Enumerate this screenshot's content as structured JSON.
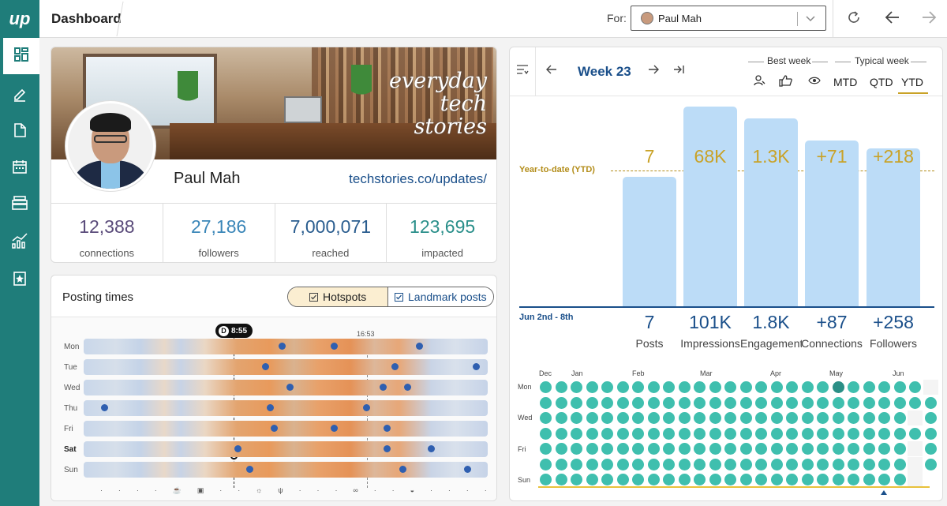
{
  "app": {
    "logo_text": "up",
    "title": "Dashboard"
  },
  "topbar": {
    "for_label": "For:",
    "selected_user": "Paul Mah"
  },
  "sidebar": {
    "items": [
      {
        "icon": "dashboard-icon",
        "active": true
      },
      {
        "icon": "edit-icon",
        "active": false
      },
      {
        "icon": "document-icon",
        "active": false
      },
      {
        "icon": "calendar-icon",
        "active": false
      },
      {
        "icon": "archive-icon",
        "active": false
      },
      {
        "icon": "analytics-icon",
        "active": false
      },
      {
        "icon": "bookmark-star-icon",
        "active": false
      }
    ]
  },
  "profile": {
    "banner_text": [
      "everyday",
      "tech",
      "stories"
    ],
    "name": "Paul Mah",
    "url": "techstories.co/updates/",
    "stats": [
      {
        "value": "12,388",
        "label": "connections",
        "color": "#5a4b7a"
      },
      {
        "value": "27,186",
        "label": "followers",
        "color": "#3a86b8"
      },
      {
        "value": "7,000,071",
        "label": "reached",
        "color": "#2a5d8f"
      },
      {
        "value": "123,695",
        "label": "impacted",
        "color": "#2a8f8a"
      }
    ]
  },
  "posting_times": {
    "title": "Posting times",
    "hotspots_label": "Hotspots",
    "landmark_label": "Landmark posts",
    "now_badge_letter": "D",
    "now_time": "8:55",
    "marker_time": "16:53",
    "days": [
      "Mon",
      "Tue",
      "Wed",
      "Thu",
      "Fri",
      "Sat",
      "Sun"
    ],
    "current_day": "Sat",
    "dot_fractions": [
      [
        0.49,
        0.62,
        0.83
      ],
      [
        0.45,
        0.77,
        0.97
      ],
      [
        0.51,
        0.74,
        0.8
      ],
      [
        0.05,
        0.46,
        0.7
      ],
      [
        0.47,
        0.62,
        0.75
      ],
      [
        0.38,
        0.75,
        0.86
      ],
      [
        0.41,
        0.79,
        0.95
      ]
    ]
  },
  "week_panel": {
    "week_label": "Week 23",
    "best_week_label": "Best week",
    "typical_week_label": "Typical week",
    "periods": [
      "MTD",
      "QTD",
      "YTD"
    ],
    "active_period": "YTD",
    "ytd_label": "Year-to-date (YTD)",
    "range_label": "Jun 2nd - 8th",
    "metrics": [
      {
        "ytd": "7",
        "week": "7",
        "label": "Posts",
        "bar_pct": 0.65
      },
      {
        "ytd": "68K",
        "week": "101K",
        "label": "Impressions",
        "bar_pct": 1.0
      },
      {
        "ytd": "1.3K",
        "week": "1.8K",
        "label": "Engagement",
        "bar_pct": 0.94
      },
      {
        "ytd": "+71",
        "week": "+87",
        "label": "Connections",
        "bar_pct": 0.83
      },
      {
        "ytd": "+218",
        "week": "+258",
        "label": "Followers",
        "bar_pct": 0.79
      }
    ],
    "calendar": {
      "months": [
        "Dec",
        "Jan",
        "Feb",
        "Mar",
        "Apr",
        "May",
        "Jun"
      ],
      "day_labels": [
        "Mon",
        "Wed",
        "Fri",
        "Sun"
      ]
    }
  },
  "colors": {
    "brand": "#1f7d7a",
    "accent_blue": "#1a4f8a",
    "ytd_gold": "#c9a227",
    "bar_blue": "#bcdcf7",
    "cal_teal": "#3fbfae"
  }
}
